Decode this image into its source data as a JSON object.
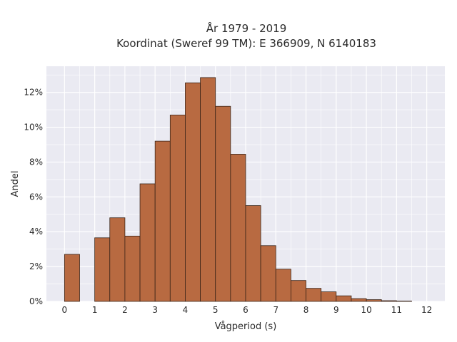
{
  "chart_data": {
    "type": "bar",
    "title_line1": "År 1979 - 2019",
    "title_line2": "Koordinat (Sweref 99 TM): E 366909, N 6140183",
    "xlabel": "Vågperiod (s)",
    "ylabel": "Andel",
    "xlim": [
      -0.6,
      12.6
    ],
    "ylim": [
      0,
      13.5
    ],
    "bin_width": 0.5,
    "x_ticks": [
      0,
      1,
      2,
      3,
      4,
      5,
      6,
      7,
      8,
      9,
      10,
      11,
      12
    ],
    "y_ticks": [
      0,
      2,
      4,
      6,
      8,
      10,
      12
    ],
    "y_tick_labels": [
      "0%",
      "2%",
      "4%",
      "6%",
      "8%",
      "10%",
      "12%"
    ],
    "grid": true,
    "colors": {
      "plot_bg": "#eaeaf2",
      "bar_fill": "#b86a41",
      "bar_edge": "#3a2418",
      "grid": "#ffffff"
    },
    "bins": [
      {
        "x0": 0.0,
        "value": 2.7
      },
      {
        "x0": 1.0,
        "value": 3.65
      },
      {
        "x0": 1.5,
        "value": 4.8
      },
      {
        "x0": 2.0,
        "value": 3.75
      },
      {
        "x0": 2.5,
        "value": 6.75
      },
      {
        "x0": 3.0,
        "value": 9.2
      },
      {
        "x0": 3.5,
        "value": 10.7
      },
      {
        "x0": 4.0,
        "value": 12.55
      },
      {
        "x0": 4.5,
        "value": 12.85
      },
      {
        "x0": 5.0,
        "value": 11.2
      },
      {
        "x0": 5.5,
        "value": 8.45
      },
      {
        "x0": 6.0,
        "value": 5.5
      },
      {
        "x0": 6.5,
        "value": 3.2
      },
      {
        "x0": 7.0,
        "value": 1.85
      },
      {
        "x0": 7.5,
        "value": 1.2
      },
      {
        "x0": 8.0,
        "value": 0.75
      },
      {
        "x0": 8.5,
        "value": 0.55
      },
      {
        "x0": 9.0,
        "value": 0.32
      },
      {
        "x0": 9.5,
        "value": 0.16
      },
      {
        "x0": 10.0,
        "value": 0.1
      },
      {
        "x0": 10.5,
        "value": 0.04
      },
      {
        "x0": 11.0,
        "value": 0.02
      }
    ]
  }
}
